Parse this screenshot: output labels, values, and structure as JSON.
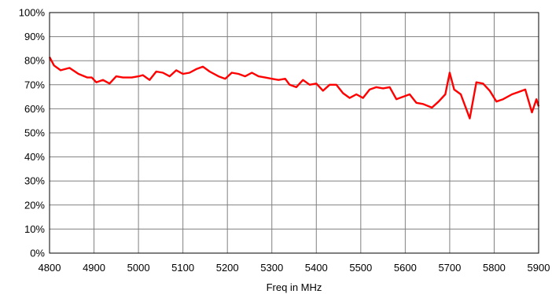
{
  "chart_data": {
    "type": "line",
    "title": "",
    "xlabel": "Freq in MHz",
    "ylabel": "",
    "xlim": [
      4800,
      5900
    ],
    "ylim": [
      0,
      100
    ],
    "x_ticks": [
      4800,
      4900,
      5000,
      5100,
      5200,
      5300,
      5400,
      5500,
      5600,
      5700,
      5800,
      5900
    ],
    "y_ticks": [
      0,
      10,
      20,
      30,
      40,
      50,
      60,
      70,
      80,
      90,
      100
    ],
    "y_tick_labels": [
      "0%",
      "10%",
      "20%",
      "30%",
      "40%",
      "50%",
      "60%",
      "70%",
      "80%",
      "90%",
      "100%"
    ],
    "grid": true,
    "legend": "none",
    "series": [
      {
        "color": "#ff0000",
        "x": [
          4800,
          4810,
          4825,
          4845,
          4865,
          4885,
          4895,
          4905,
          4920,
          4935,
          4950,
          4965,
          4985,
          5000,
          5010,
          5025,
          5040,
          5055,
          5070,
          5085,
          5100,
          5115,
          5130,
          5145,
          5160,
          5180,
          5195,
          5210,
          5225,
          5240,
          5255,
          5270,
          5285,
          5300,
          5315,
          5330,
          5340,
          5355,
          5370,
          5385,
          5400,
          5415,
          5430,
          5445,
          5460,
          5475,
          5490,
          5505,
          5520,
          5535,
          5550,
          5565,
          5580,
          5595,
          5610,
          5625,
          5640,
          5660,
          5675,
          5690,
          5700,
          5710,
          5725,
          5745,
          5760,
          5775,
          5790,
          5805,
          5820,
          5840,
          5855,
          5870,
          5885,
          5895,
          5900
        ],
        "y": [
          81.5,
          78,
          76,
          77,
          74.5,
          73,
          73,
          71,
          72,
          70.5,
          73.5,
          73,
          73,
          73.5,
          74,
          72,
          75.5,
          75,
          73.5,
          76,
          74.5,
          75,
          76.5,
          77.5,
          75.5,
          73.5,
          72.5,
          75,
          74.5,
          73.5,
          75,
          73.5,
          73,
          72.5,
          72,
          72.5,
          70,
          69,
          72,
          70,
          70.5,
          67.5,
          70,
          70,
          66.5,
          64.5,
          66,
          64.5,
          68,
          69,
          68.5,
          69,
          64,
          65,
          66,
          62.5,
          62,
          60.5,
          63,
          66,
          75,
          68,
          66,
          56,
          71,
          70.5,
          67.5,
          63,
          64,
          66,
          67,
          68,
          58.5,
          64,
          61
        ]
      }
    ]
  }
}
